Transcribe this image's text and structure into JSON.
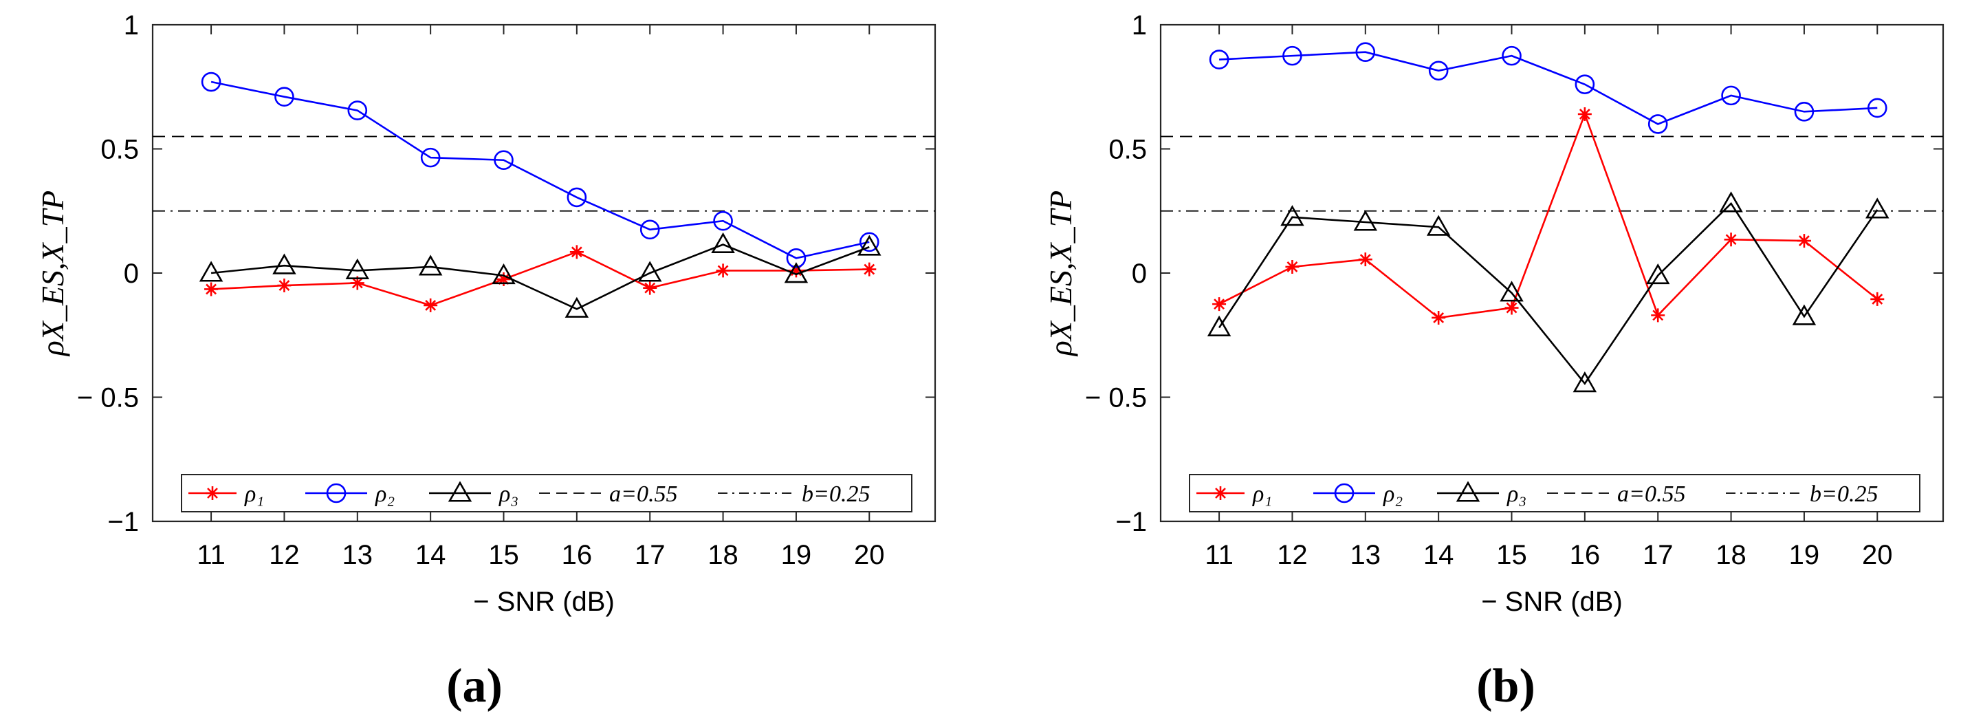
{
  "colors": {
    "rho1": "#ff0000",
    "rho2": "#0000ff",
    "rho3": "#000000",
    "ref": "#000000",
    "axis": "#262626"
  },
  "chart_data": [
    {
      "type": "line",
      "panel_label": "(a)",
      "xlabel": "− SNR (dB)",
      "ylabel": "ρX_ES,X_TP",
      "x": [
        11,
        12,
        13,
        14,
        15,
        16,
        17,
        18,
        19,
        20
      ],
      "x_ticks": [
        "11",
        "12",
        "13",
        "14",
        "15",
        "16",
        "17",
        "18",
        "19",
        "20"
      ],
      "xlim": [
        10.2,
        20.9
      ],
      "ylim": [
        -1,
        1
      ],
      "y_ticks": [
        "−1",
        "− 0.5",
        "0",
        "0.5",
        "1"
      ],
      "y_tick_values": [
        -1,
        -0.5,
        0,
        0.5,
        1
      ],
      "series": [
        {
          "name": "ρ₁",
          "marker": "star",
          "values": [
            -0.065,
            -0.05,
            -0.04,
            -0.13,
            -0.025,
            0.085,
            -0.06,
            0.01,
            0.01,
            0.015
          ]
        },
        {
          "name": "ρ₂",
          "marker": "circle",
          "values": [
            0.77,
            0.71,
            0.655,
            0.465,
            0.455,
            0.305,
            0.175,
            0.21,
            0.06,
            0.125
          ]
        },
        {
          "name": "ρ₃",
          "marker": "triangle",
          "values": [
            0.0,
            0.03,
            0.01,
            0.025,
            -0.01,
            -0.145,
            0.0,
            0.115,
            -0.005,
            0.105
          ]
        }
      ],
      "reference_lines": [
        {
          "name": "a=0.55",
          "value": 0.55,
          "style": "dashed"
        },
        {
          "name": "b=0.25",
          "value": 0.25,
          "style": "dashdot"
        }
      ],
      "legend": [
        "ρ₁",
        "ρ₂",
        "ρ₃",
        "a=0.55",
        "b=0.25"
      ],
      "legend_position": "bottom"
    },
    {
      "type": "line",
      "panel_label": "(b)",
      "xlabel": "− SNR (dB)",
      "ylabel": "ρX_ES,X_TP",
      "x": [
        11,
        12,
        13,
        14,
        15,
        16,
        17,
        18,
        19,
        20
      ],
      "x_ticks": [
        "11",
        "12",
        "13",
        "14",
        "15",
        "16",
        "17",
        "18",
        "19",
        "20"
      ],
      "xlim": [
        10.2,
        20.9
      ],
      "ylim": [
        -1,
        1
      ],
      "y_ticks": [
        "−1",
        "− 0.5",
        "0",
        "0.5",
        "1"
      ],
      "y_tick_values": [
        -1,
        -0.5,
        0,
        0.5,
        1
      ],
      "series": [
        {
          "name": "ρ₁",
          "marker": "star",
          "values": [
            -0.125,
            0.025,
            0.055,
            -0.18,
            -0.14,
            0.64,
            -0.17,
            0.135,
            0.13,
            -0.105
          ]
        },
        {
          "name": "ρ₂",
          "marker": "circle",
          "values": [
            0.86,
            0.875,
            0.89,
            0.815,
            0.875,
            0.76,
            0.6,
            0.715,
            0.65,
            0.665
          ]
        },
        {
          "name": "ρ₃",
          "marker": "triangle",
          "values": [
            -0.22,
            0.225,
            0.205,
            0.185,
            -0.08,
            -0.445,
            -0.01,
            0.28,
            -0.175,
            0.255
          ]
        }
      ],
      "reference_lines": [
        {
          "name": "a=0.55",
          "value": 0.55,
          "style": "dashed"
        },
        {
          "name": "b=0.25",
          "value": 0.25,
          "style": "dashdot"
        }
      ],
      "legend": [
        "ρ₁",
        "ρ₂",
        "ρ₃",
        "a=0.55",
        "b=0.25"
      ],
      "legend_position": "bottom"
    }
  ]
}
